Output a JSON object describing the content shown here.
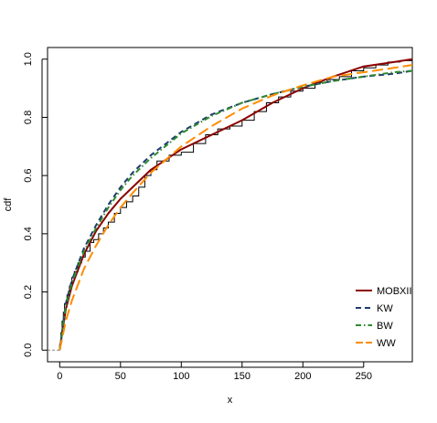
{
  "chart_data": {
    "type": "line",
    "title": "",
    "xlabel": "x",
    "ylabel": "cdf",
    "xlim": [
      -10,
      290
    ],
    "ylim": [
      -0.04,
      1.04
    ],
    "x_ticks": [
      0,
      50,
      100,
      150,
      200,
      250
    ],
    "y_ticks": [
      0.0,
      0.2,
      0.4,
      0.6,
      0.8,
      1.0
    ],
    "x_tick_labels": [
      "0",
      "50",
      "100",
      "150",
      "200",
      "250"
    ],
    "y_tick_labels": [
      "0.0",
      "0.2",
      "0.4",
      "0.6",
      "0.8",
      "1.0"
    ],
    "grid": false,
    "legend_position": "bottom-right",
    "empirical_cdf": {
      "color": "#000000",
      "x": [
        0,
        1,
        2,
        3,
        4,
        6,
        8,
        10,
        12,
        15,
        18,
        21,
        25,
        28,
        32,
        36,
        40,
        45,
        50,
        55,
        60,
        65,
        70,
        75,
        80,
        90,
        100,
        110,
        120,
        130,
        140,
        150,
        160,
        170,
        180,
        190,
        200,
        210,
        220,
        230,
        240,
        250,
        260,
        270,
        280,
        290
      ],
      "y": [
        0.02,
        0.06,
        0.1,
        0.13,
        0.16,
        0.19,
        0.22,
        0.25,
        0.27,
        0.3,
        0.32,
        0.34,
        0.37,
        0.38,
        0.4,
        0.42,
        0.44,
        0.47,
        0.49,
        0.51,
        0.53,
        0.56,
        0.6,
        0.62,
        0.65,
        0.67,
        0.68,
        0.71,
        0.74,
        0.76,
        0.77,
        0.79,
        0.82,
        0.85,
        0.87,
        0.89,
        0.9,
        0.92,
        0.93,
        0.94,
        0.96,
        0.97,
        0.98,
        0.99,
        0.995,
        1.0
      ]
    },
    "series": [
      {
        "name": "MOBXII",
        "color": "#8B0000",
        "dash": "solid",
        "x": [
          0,
          5,
          10,
          20,
          30,
          40,
          50,
          60,
          75,
          100,
          125,
          150,
          175,
          200,
          225,
          250,
          275,
          290
        ],
        "y": [
          0.0,
          0.14,
          0.22,
          0.33,
          0.41,
          0.47,
          0.52,
          0.56,
          0.62,
          0.69,
          0.74,
          0.79,
          0.85,
          0.9,
          0.94,
          0.975,
          0.99,
          1.0
        ]
      },
      {
        "name": "KW",
        "color": "#1F3A6E",
        "dash": "dashed",
        "x": [
          0,
          5,
          10,
          20,
          30,
          40,
          50,
          60,
          75,
          100,
          125,
          150,
          175,
          200,
          225,
          250,
          275,
          290
        ],
        "y": [
          0.0,
          0.16,
          0.24,
          0.35,
          0.43,
          0.5,
          0.56,
          0.61,
          0.67,
          0.75,
          0.81,
          0.85,
          0.88,
          0.905,
          0.925,
          0.94,
          0.95,
          0.96
        ]
      },
      {
        "name": "BW",
        "color": "#2E8B2E",
        "dash": "dashdot",
        "x": [
          0,
          5,
          10,
          20,
          30,
          40,
          50,
          60,
          75,
          100,
          125,
          150,
          175,
          200,
          225,
          250,
          275,
          290
        ],
        "y": [
          0.0,
          0.15,
          0.23,
          0.34,
          0.42,
          0.49,
          0.55,
          0.6,
          0.66,
          0.745,
          0.805,
          0.85,
          0.88,
          0.905,
          0.925,
          0.94,
          0.955,
          0.96
        ]
      },
      {
        "name": "WW",
        "color": "#FF8C00",
        "dash": "longdash",
        "x": [
          0,
          5,
          10,
          20,
          30,
          40,
          50,
          60,
          75,
          100,
          125,
          150,
          175,
          200,
          225,
          250,
          275,
          290
        ],
        "y": [
          0.0,
          0.1,
          0.17,
          0.28,
          0.36,
          0.43,
          0.49,
          0.54,
          0.61,
          0.7,
          0.77,
          0.83,
          0.875,
          0.91,
          0.94,
          0.955,
          0.97,
          0.98
        ]
      }
    ]
  }
}
